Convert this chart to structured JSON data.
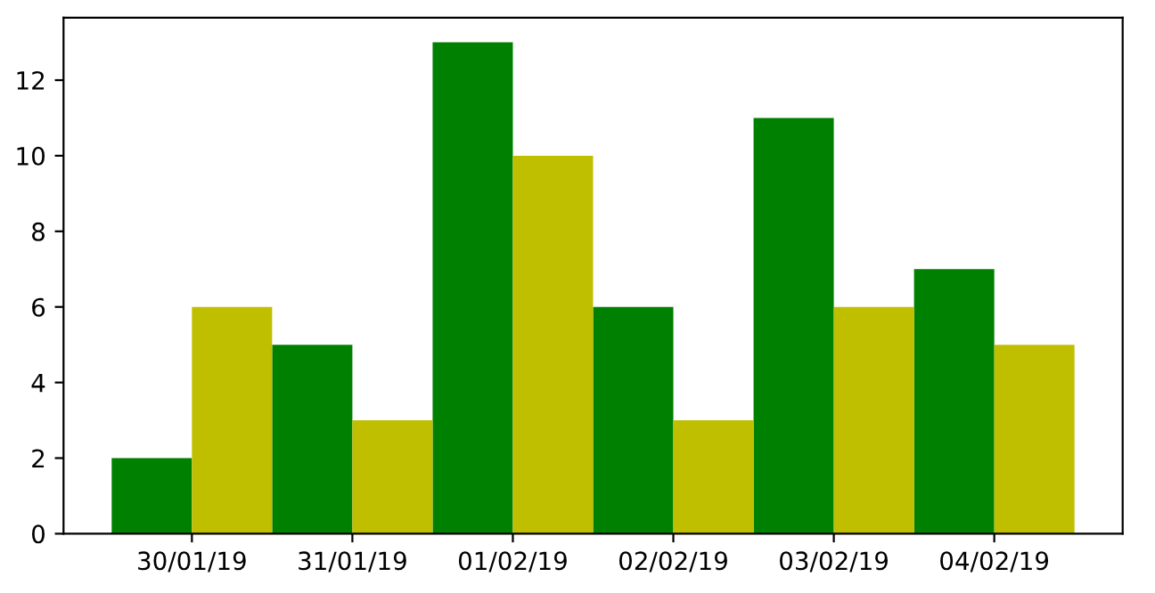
{
  "chart_data": {
    "type": "bar",
    "categories": [
      "30/01/19",
      "31/01/19",
      "01/02/19",
      "02/02/19",
      "03/02/19",
      "04/02/19"
    ],
    "series": [
      {
        "color": "#008000",
        "values": [
          2,
          5,
          13,
          6,
          11,
          7
        ]
      },
      {
        "color": "#bfbf00",
        "values": [
          6,
          3,
          10,
          3,
          6,
          5
        ]
      }
    ],
    "ylim": [
      0,
      13.65
    ],
    "yticks": [
      0,
      2,
      4,
      6,
      8,
      10,
      12
    ],
    "grid": false,
    "legend": false
  }
}
